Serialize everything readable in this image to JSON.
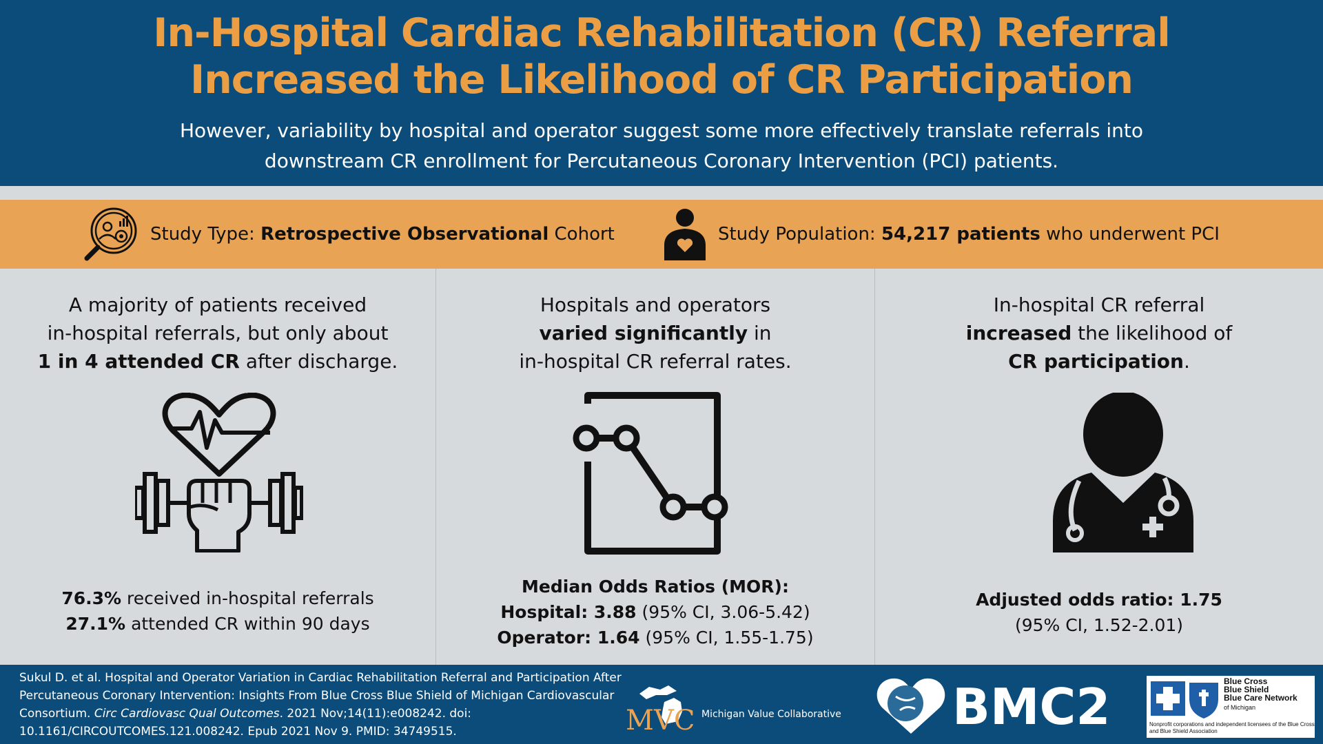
{
  "header": {
    "title_line1": "In-Hospital Cardiac Rehabilitation (CR) Referral",
    "title_line2": "Increased the Likelihood of CR Participation",
    "subtitle_line1": "However, variability by hospital and operator suggest some more effectively translate referrals into",
    "subtitle_line2": "downstream CR enrollment for Percutaneous Coronary Intervention (PCI) patients."
  },
  "study": {
    "type_label": "Study Type:",
    "type_bold": "Retrospective Observational",
    "type_rest": "Cohort",
    "pop_label": "Study Population:",
    "pop_bold": "54,217 patients",
    "pop_rest": "who underwent PCI"
  },
  "col1": {
    "line1": "A majority of patients received",
    "line2": "in-hospital referrals, but only about",
    "line3_bold": "1 in 4 attended CR",
    "line3_rest": "after discharge.",
    "stat1_bold": "76.3%",
    "stat1_rest": "received in-hospital referrals",
    "stat2_bold": "27.1%",
    "stat2_rest": "attended CR within 90 days"
  },
  "col2": {
    "line1": "Hospitals and operators",
    "line2_bold": "varied significantly",
    "line2_rest": "in",
    "line3": "in-hospital CR referral rates.",
    "stat_head": "Median Odds Ratios (MOR):",
    "stat1_bold": "Hospital: 3.88",
    "stat1_rest": "(95% CI, 3.06-5.42)",
    "stat2_bold": "Operator: 1.64",
    "stat2_rest": "(95% CI, 1.55-1.75)"
  },
  "col3": {
    "line1": "In-hospital CR referral",
    "line2_bold": "increased",
    "line2_rest": "the likelihood of",
    "line3_bold": "CR participation",
    "line3_rest": ".",
    "stat1_bold": "Adjusted odds ratio: 1.75",
    "stat2": "(95% CI, 1.52-2.01)"
  },
  "footer": {
    "citation_a": "Sukul D. et al. Hospital and Operator Variation in Cardiac Rehabilitation Referral and Participation After Percutaneous Coronary Intervention: Insights From Blue Cross Blue Shield of Michigan Cardiovascular Consortium.",
    "citation_journal": "Circ Cardiovasc Qual Outcomes",
    "citation_b": ". 2021 Nov;14(11):e008242. doi: 10.1161/CIRCOUTCOMES.121.008242. Epub 2021 Nov 9. PMID: 34749515.",
    "mvc_letters": "MVC",
    "mvc_name": "Michigan Value Collaborative",
    "bmc2_name": "BMC2",
    "bcbs_line1": "Blue Cross",
    "bcbs_line2": "Blue Shield",
    "bcbs_line3": "Blue Care Network",
    "bcbs_sub": "of Michigan",
    "bcbs_note": "Nonprofit corporations and independent licensees of the Blue Cross and Blue Shield Association"
  },
  "colors": {
    "navy": "#0c4c7a",
    "orange": "#e8a354",
    "title_orange": "#eb9e43",
    "panel_grey": "#d7dadd"
  }
}
